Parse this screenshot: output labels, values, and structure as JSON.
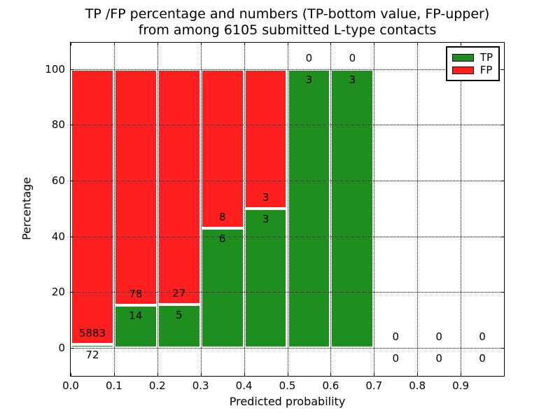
{
  "figure": {
    "title_line1": "TP /FP percentage and numbers (TP-bottom value, FP-upper)",
    "title_line2": "from among 6105 submitted L-type contacts"
  },
  "legend": {
    "items": [
      {
        "label": "TP",
        "color": "#1e8f1e"
      },
      {
        "label": "FP",
        "color": "#ff1f1f"
      }
    ]
  },
  "chart_data": {
    "type": "bar",
    "stacked": true,
    "title": "TP /FP percentage and numbers (TP-bottom value, FP-upper) from among 6105 submitted L-type contacts",
    "xlabel": "Predicted probability",
    "ylabel": "Percentage",
    "xlim": [
      0.0,
      1.0
    ],
    "ylim": [
      -10,
      110
    ],
    "xticks": [
      "0.0",
      "0.1",
      "0.2",
      "0.3",
      "0.4",
      "0.5",
      "0.6",
      "0.7",
      "0.8",
      "0.9"
    ],
    "ytick_values": [
      0,
      20,
      40,
      60,
      80,
      100
    ],
    "grid": true,
    "legend_position": "upper right",
    "total_contacts": 6105,
    "series": [
      {
        "name": "TP",
        "color": "#1e8f1e",
        "values_pct": [
          1.21,
          15.22,
          15.63,
          42.86,
          50.0,
          100.0,
          100.0,
          0,
          0,
          0
        ]
      },
      {
        "name": "FP",
        "color": "#ff1f1f",
        "values_pct": [
          98.79,
          84.78,
          84.37,
          57.14,
          50.0,
          0.0,
          0.0,
          0,
          0,
          0
        ]
      }
    ],
    "bins": [
      {
        "range": "0.0-0.1",
        "x0": 0.0,
        "x1": 0.1,
        "tp_count": 72,
        "fp_count": 5883,
        "tp_pct": 1.21,
        "has_bar": true
      },
      {
        "range": "0.1-0.2",
        "x0": 0.1,
        "x1": 0.2,
        "tp_count": 14,
        "fp_count": 78,
        "tp_pct": 15.22,
        "has_bar": true
      },
      {
        "range": "0.2-0.3",
        "x0": 0.2,
        "x1": 0.3,
        "tp_count": 5,
        "fp_count": 27,
        "tp_pct": 15.63,
        "has_bar": true
      },
      {
        "range": "0.3-0.4",
        "x0": 0.3,
        "x1": 0.4,
        "tp_count": 6,
        "fp_count": 8,
        "tp_pct": 42.86,
        "has_bar": true
      },
      {
        "range": "0.4-0.5",
        "x0": 0.4,
        "x1": 0.5,
        "tp_count": 3,
        "fp_count": 3,
        "tp_pct": 50.0,
        "has_bar": true
      },
      {
        "range": "0.5-0.6",
        "x0": 0.5,
        "x1": 0.6,
        "tp_count": 3,
        "fp_count": 0,
        "tp_pct": 100.0,
        "has_bar": true
      },
      {
        "range": "0.6-0.7",
        "x0": 0.6,
        "x1": 0.7,
        "tp_count": 3,
        "fp_count": 0,
        "tp_pct": 100.0,
        "has_bar": true
      },
      {
        "range": "0.7-0.8",
        "x0": 0.7,
        "x1": 0.8,
        "tp_count": 0,
        "fp_count": 0,
        "tp_pct": 0,
        "has_bar": false
      },
      {
        "range": "0.8-0.9",
        "x0": 0.8,
        "x1": 0.9,
        "tp_count": 0,
        "fp_count": 0,
        "tp_pct": 0,
        "has_bar": false
      },
      {
        "range": "0.9-1.0",
        "x0": 0.9,
        "x1": 1.0,
        "tp_count": 0,
        "fp_count": 0,
        "tp_pct": 0,
        "has_bar": false
      }
    ],
    "colors": {
      "tp": "#1e8f1e",
      "fp": "#ff1f1f",
      "bar_edge": "#ffffff",
      "grid": "#000000",
      "axes": "#000000",
      "background": "#ffffff"
    }
  }
}
